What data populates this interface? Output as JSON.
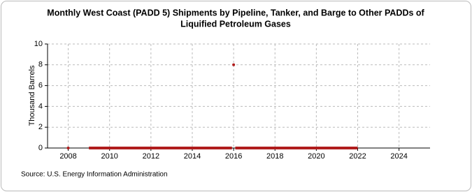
{
  "chart_data": {
    "type": "line",
    "title": [
      "Monthly West Coast (PADD 5) Shipments by Pipeline, Tanker, and Barge to Other PADDs of",
      "Liquified Petroleum Gases"
    ],
    "y_label": "Thousand Barrels",
    "source": "Source: U.S. Energy Information Administration",
    "x": [
      2008,
      2008.5,
      2009,
      2015.92,
      2015.96,
      2016,
      2016.04,
      2016.08,
      2022
    ],
    "series": [
      {
        "color": "#b01c1c",
        "values": [
          0,
          null,
          0,
          0,
          null,
          8,
          null,
          0,
          0
        ]
      }
    ],
    "xlim": [
      2007,
      2025.5
    ],
    "xticks": [
      2008,
      2010,
      2012,
      2014,
      2016,
      2018,
      2020,
      2022,
      2024
    ],
    "ylim": [
      0,
      10
    ],
    "yticks": [
      0,
      2,
      4,
      6,
      8,
      10
    ],
    "grid": true
  }
}
